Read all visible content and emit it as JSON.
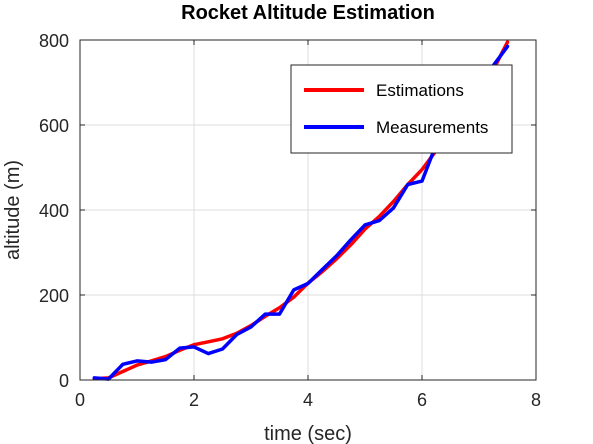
{
  "chart_data": {
    "type": "line",
    "title": "Rocket Altitude Estimation",
    "xlabel": "time (sec)",
    "ylabel": "altitude (m)",
    "xlim": [
      0,
      8
    ],
    "ylim": [
      0,
      800
    ],
    "xticks": [
      0,
      2,
      4,
      6,
      8
    ],
    "yticks": [
      0,
      200,
      400,
      600,
      800
    ],
    "grid": true,
    "legend_position": "top-right",
    "series": [
      {
        "name": "Estimations",
        "color": "#ff0000",
        "x": [
          0.25,
          0.5,
          0.75,
          1.0,
          1.25,
          1.5,
          1.75,
          2.0,
          2.25,
          2.5,
          2.75,
          3.0,
          3.25,
          3.5,
          3.75,
          4.0,
          4.25,
          4.5,
          4.75,
          5.0,
          5.25,
          5.5,
          5.75,
          6.0,
          6.25,
          6.5,
          6.75,
          7.0,
          7.25,
          7.5
        ],
        "y": [
          3,
          5,
          20,
          35,
          45,
          55,
          70,
          83,
          90,
          97,
          110,
          128,
          150,
          170,
          195,
          228,
          255,
          285,
          318,
          355,
          385,
          420,
          460,
          495,
          540,
          580,
          625,
          670,
          730,
          795
        ]
      },
      {
        "name": "Measurements",
        "color": "#0000ff",
        "x": [
          0.25,
          0.5,
          0.75,
          1.0,
          1.25,
          1.5,
          1.75,
          2.0,
          2.25,
          2.5,
          2.75,
          3.0,
          3.25,
          3.5,
          3.75,
          4.0,
          4.25,
          4.5,
          4.75,
          5.0,
          5.25,
          5.5,
          5.75,
          6.0,
          6.25,
          6.5,
          6.75,
          7.0,
          7.25,
          7.5
        ],
        "y": [
          5,
          2,
          37,
          45,
          42,
          48,
          75,
          78,
          62,
          73,
          107,
          125,
          155,
          155,
          212,
          227,
          260,
          292,
          330,
          365,
          375,
          405,
          460,
          468,
          555,
          590,
          630,
          680,
          740,
          785
        ]
      }
    ]
  }
}
